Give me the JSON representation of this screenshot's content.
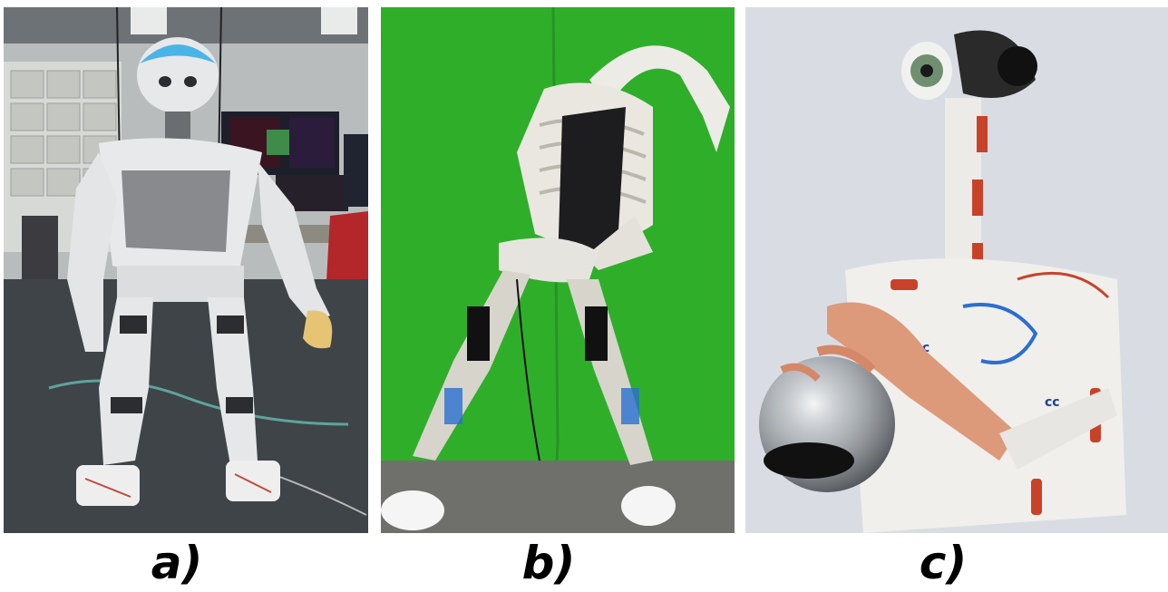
{
  "figure": {
    "panels": [
      {
        "label": "a)",
        "scene": "humanoid-robot-in-lab"
      },
      {
        "label": "b)",
        "scene": "musculoskeletal-robot-green-screen"
      },
      {
        "label": "c)",
        "scene": "musculoskeletal-robot-holding-ball"
      }
    ]
  },
  "colors": {
    "page_background": "#ffffff",
    "green_screen": "#2fae2a",
    "lab_floor": "#3e4448",
    "robot_white": "#ececec",
    "wall_grey": "#d9dde3",
    "accent_red": "#c8422a",
    "accent_blue": "#2a6fd0"
  }
}
